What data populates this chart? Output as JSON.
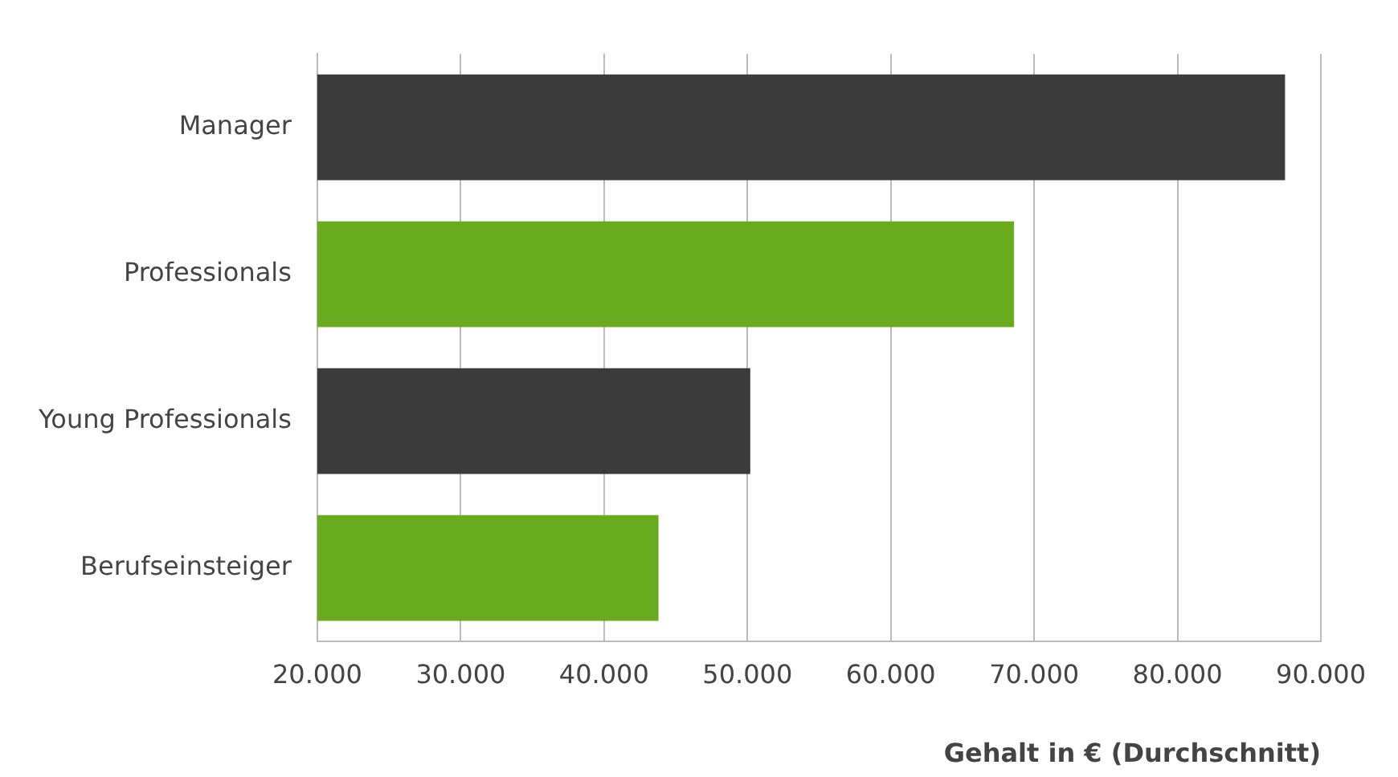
{
  "chart_data": {
    "type": "bar",
    "orientation": "horizontal",
    "categories": [
      "Manager",
      "Professionals",
      "Young Professionals",
      "Berufseinsteiger"
    ],
    "values": [
      87500,
      68600,
      50200,
      43800
    ],
    "colors": [
      "#3b3b3b",
      "#6aaa1e",
      "#3b3b3b",
      "#6aaa1e"
    ],
    "xlabel": "Gehalt in € (Durchschnitt)",
    "xlim": [
      20000,
      90000
    ],
    "xticks": [
      {
        "value": 20000,
        "label": "20.000"
      },
      {
        "value": 30000,
        "label": "30.000"
      },
      {
        "value": 40000,
        "label": "40.000"
      },
      {
        "value": 50000,
        "label": "50.000"
      },
      {
        "value": 60000,
        "label": "60.000"
      },
      {
        "value": 70000,
        "label": "70.000"
      },
      {
        "value": 80000,
        "label": "80.000"
      },
      {
        "value": 90000,
        "label": "90.000"
      }
    ],
    "grid": "x",
    "legend": false
  }
}
